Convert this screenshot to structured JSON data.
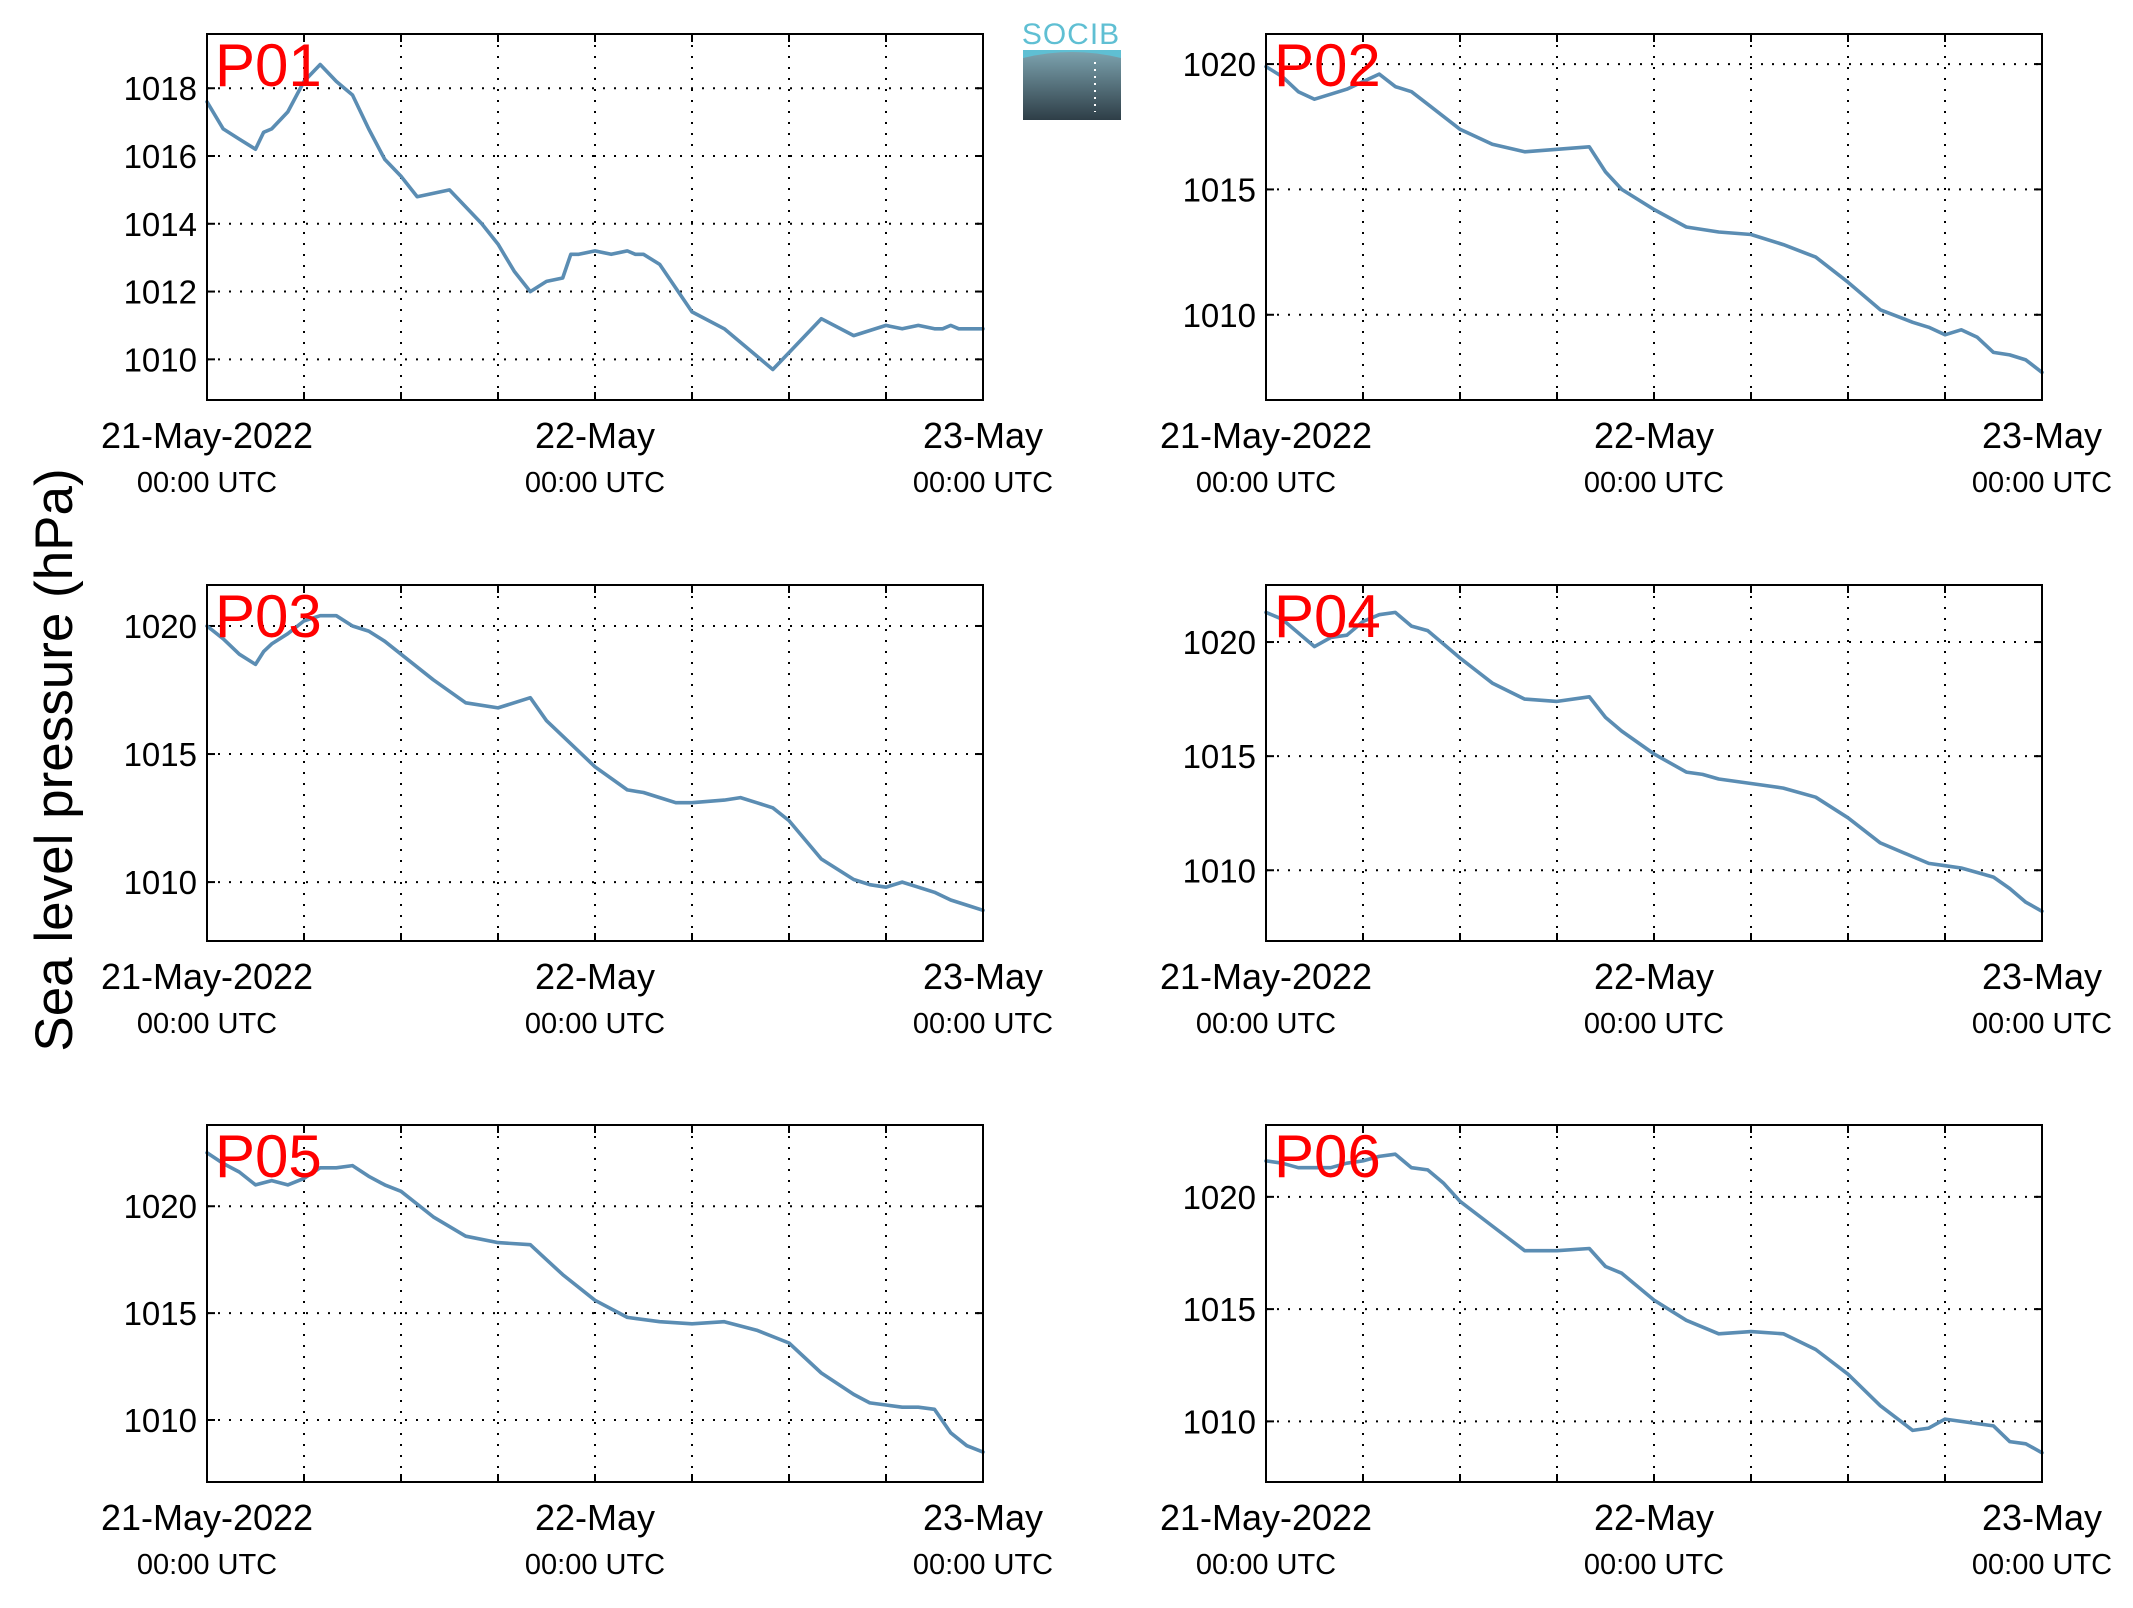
{
  "figure": {
    "ylabel": "Sea level pressure (hPa)",
    "logo": "SOCIB",
    "colors": {
      "line": "#5b8db3",
      "panel_label": "#ff0000",
      "logo_cyan": "#5fbfd3",
      "grid": "#000000"
    }
  },
  "chart_data": [
    {
      "type": "line",
      "title": "P01",
      "x_ticks": [
        {
          "date": "21-May-2022",
          "time": "00:00 UTC"
        },
        {
          "date": "22-May",
          "time": "00:00 UTC"
        },
        {
          "date": "23-May",
          "time": "00:00 UTC"
        }
      ],
      "xlim_hours": [
        0,
        48
      ],
      "ylim": [
        1008.8,
        1019.6
      ],
      "yticks": [
        1010,
        1012,
        1014,
        1016,
        1018
      ],
      "series": [
        {
          "x": [
            0,
            1,
            2,
            3,
            3.5,
            4,
            5,
            6,
            7,
            8,
            8.5,
            9,
            10,
            11,
            12,
            13,
            15,
            17,
            18,
            18.5,
            19,
            20,
            21,
            22,
            22.5,
            23,
            24,
            25,
            26,
            26.5,
            27,
            28,
            30,
            32,
            35,
            36,
            38,
            40,
            42,
            43,
            44,
            45,
            45.5,
            46,
            46.5,
            47,
            48
          ],
          "values": [
            1017.6,
            1016.8,
            1016.5,
            1016.2,
            1016.7,
            1016.8,
            1017.3,
            1018.2,
            1018.7,
            1018.2,
            1018.0,
            1017.8,
            1016.8,
            1015.9,
            1015.4,
            1014.8,
            1015.0,
            1014.0,
            1013.4,
            1013.0,
            1012.6,
            1012.0,
            1012.3,
            1012.4,
            1013.1,
            1013.1,
            1013.2,
            1013.1,
            1013.2,
            1013.1,
            1013.1,
            1012.8,
            1011.4,
            1010.9,
            1009.7,
            1010.2,
            1011.2,
            1010.7,
            1011.0,
            1010.9,
            1011.0,
            1010.9,
            1010.9,
            1011.0,
            1010.9,
            1010.9,
            1010.9
          ]
        }
      ]
    },
    {
      "type": "line",
      "title": "P02",
      "x_ticks": [
        {
          "date": "21-May-2022",
          "time": "00:00 UTC"
        },
        {
          "date": "22-May",
          "time": "00:00 UTC"
        },
        {
          "date": "23-May",
          "time": "00:00 UTC"
        }
      ],
      "xlim_hours": [
        0,
        48
      ],
      "ylim": [
        1006.6,
        1021.2
      ],
      "yticks": [
        1010,
        1015,
        1020
      ],
      "series": [
        {
          "x": [
            0,
            1,
            2,
            3,
            4,
            5,
            6,
            7,
            8,
            9,
            10,
            12,
            14,
            16,
            18,
            20,
            21,
            22,
            24,
            26,
            28,
            30,
            32,
            34,
            36,
            38,
            40,
            41,
            42,
            43,
            44,
            45,
            46,
            47,
            48
          ],
          "values": [
            1019.9,
            1019.5,
            1018.9,
            1018.6,
            1018.8,
            1019.0,
            1019.3,
            1019.6,
            1019.1,
            1018.9,
            1018.4,
            1017.4,
            1016.8,
            1016.5,
            1016.6,
            1016.7,
            1015.7,
            1015.0,
            1014.2,
            1013.5,
            1013.3,
            1013.2,
            1012.8,
            1012.3,
            1011.3,
            1010.2,
            1009.7,
            1009.5,
            1009.2,
            1009.4,
            1009.1,
            1008.5,
            1008.4,
            1008.2,
            1007.7
          ]
        }
      ]
    },
    {
      "type": "line",
      "title": "P03",
      "x_ticks": [
        {
          "date": "21-May-2022",
          "time": "00:00 UTC"
        },
        {
          "date": "22-May",
          "time": "00:00 UTC"
        },
        {
          "date": "23-May",
          "time": "00:00 UTC"
        }
      ],
      "xlim_hours": [
        0,
        48
      ],
      "ylim": [
        1007.7,
        1021.6
      ],
      "yticks": [
        1010,
        1015,
        1020
      ],
      "series": [
        {
          "x": [
            0,
            1,
            2,
            3,
            3.5,
            4,
            5,
            6,
            7,
            8,
            9,
            10,
            11,
            12,
            14,
            16,
            18,
            20,
            21,
            22,
            24,
            26,
            27,
            28,
            29,
            30,
            32,
            33,
            34,
            35,
            36,
            38,
            40,
            41,
            42,
            43,
            44,
            45,
            46,
            47,
            48
          ],
          "values": [
            1020.0,
            1019.5,
            1018.9,
            1018.5,
            1019.0,
            1019.3,
            1019.7,
            1020.2,
            1020.4,
            1020.4,
            1020.0,
            1019.8,
            1019.4,
            1018.9,
            1017.9,
            1017.0,
            1016.8,
            1017.2,
            1016.3,
            1015.7,
            1014.5,
            1013.6,
            1013.5,
            1013.3,
            1013.1,
            1013.1,
            1013.2,
            1013.3,
            1013.1,
            1012.9,
            1012.4,
            1010.9,
            1010.1,
            1009.9,
            1009.8,
            1010.0,
            1009.8,
            1009.6,
            1009.3,
            1009.1,
            1008.9
          ]
        }
      ]
    },
    {
      "type": "line",
      "title": "P04",
      "x_ticks": [
        {
          "date": "21-May-2022",
          "time": "00:00 UTC"
        },
        {
          "date": "22-May",
          "time": "00:00 UTC"
        },
        {
          "date": "23-May",
          "time": "00:00 UTC"
        }
      ],
      "xlim_hours": [
        0,
        48
      ],
      "ylim": [
        1006.9,
        1022.5
      ],
      "yticks": [
        1010,
        1015,
        1020
      ],
      "series": [
        {
          "x": [
            0,
            1,
            2,
            3,
            3.5,
            4,
            5,
            6,
            7,
            8,
            9,
            10,
            11,
            12,
            14,
            16,
            18,
            20,
            21,
            22,
            24,
            26,
            27,
            28,
            30,
            32,
            34,
            36,
            38,
            40,
            41,
            42,
            43,
            44,
            45,
            46,
            47,
            48
          ],
          "values": [
            1021.3,
            1021.0,
            1020.4,
            1019.8,
            1020.0,
            1020.2,
            1020.3,
            1020.9,
            1021.2,
            1021.3,
            1020.7,
            1020.5,
            1019.9,
            1019.3,
            1018.2,
            1017.5,
            1017.4,
            1017.6,
            1016.7,
            1016.1,
            1015.1,
            1014.3,
            1014.2,
            1014.0,
            1013.8,
            1013.6,
            1013.2,
            1012.3,
            1011.2,
            1010.6,
            1010.3,
            1010.2,
            1010.1,
            1009.9,
            1009.7,
            1009.2,
            1008.6,
            1008.2
          ]
        }
      ]
    },
    {
      "type": "line",
      "title": "P05",
      "x_ticks": [
        {
          "date": "21-May-2022",
          "time": "00:00 UTC"
        },
        {
          "date": "22-May",
          "time": "00:00 UTC"
        },
        {
          "date": "23-May",
          "time": "00:00 UTC"
        }
      ],
      "xlim_hours": [
        0,
        48
      ],
      "ylim": [
        1007.1,
        1023.8
      ],
      "yticks": [
        1010,
        1015,
        1020
      ],
      "series": [
        {
          "x": [
            0,
            1,
            2,
            3,
            4,
            5,
            6,
            7,
            8,
            9,
            10,
            11,
            12,
            14,
            16,
            18,
            20,
            21,
            22,
            24,
            26,
            28,
            30,
            32,
            34,
            36,
            38,
            40,
            41,
            42,
            43,
            44,
            45,
            46,
            47,
            48
          ],
          "values": [
            1022.5,
            1022.0,
            1021.6,
            1021.0,
            1021.2,
            1021.0,
            1021.3,
            1021.8,
            1021.8,
            1021.9,
            1021.4,
            1021.0,
            1020.7,
            1019.5,
            1018.6,
            1018.3,
            1018.2,
            1017.5,
            1016.8,
            1015.6,
            1014.8,
            1014.6,
            1014.5,
            1014.6,
            1014.2,
            1013.6,
            1012.2,
            1011.2,
            1010.8,
            1010.7,
            1010.6,
            1010.6,
            1010.5,
            1009.4,
            1008.8,
            1008.5
          ]
        }
      ]
    },
    {
      "type": "line",
      "title": "P06",
      "x_ticks": [
        {
          "date": "21-May-2022",
          "time": "00:00 UTC"
        },
        {
          "date": "22-May",
          "time": "00:00 UTC"
        },
        {
          "date": "23-May",
          "time": "00:00 UTC"
        }
      ],
      "xlim_hours": [
        0,
        48
      ],
      "ylim": [
        1007.3,
        1023.2
      ],
      "yticks": [
        1010,
        1015,
        1020
      ],
      "series": [
        {
          "x": [
            0,
            1,
            2,
            3,
            4,
            5,
            6,
            7,
            8,
            9,
            10,
            11,
            12,
            14,
            16,
            18,
            20,
            21,
            22,
            24,
            26,
            28,
            30,
            32,
            34,
            36,
            38,
            40,
            41,
            42,
            43,
            44,
            45,
            46,
            47,
            48
          ],
          "values": [
            1021.6,
            1021.5,
            1021.3,
            1021.3,
            1021.3,
            1021.5,
            1021.6,
            1021.8,
            1021.9,
            1021.3,
            1021.2,
            1020.6,
            1019.8,
            1018.7,
            1017.6,
            1017.6,
            1017.7,
            1016.9,
            1016.6,
            1015.4,
            1014.5,
            1013.9,
            1014.0,
            1013.9,
            1013.2,
            1012.1,
            1010.7,
            1009.6,
            1009.7,
            1010.1,
            1010.0,
            1009.9,
            1009.8,
            1009.1,
            1009.0,
            1008.6
          ]
        }
      ]
    }
  ]
}
